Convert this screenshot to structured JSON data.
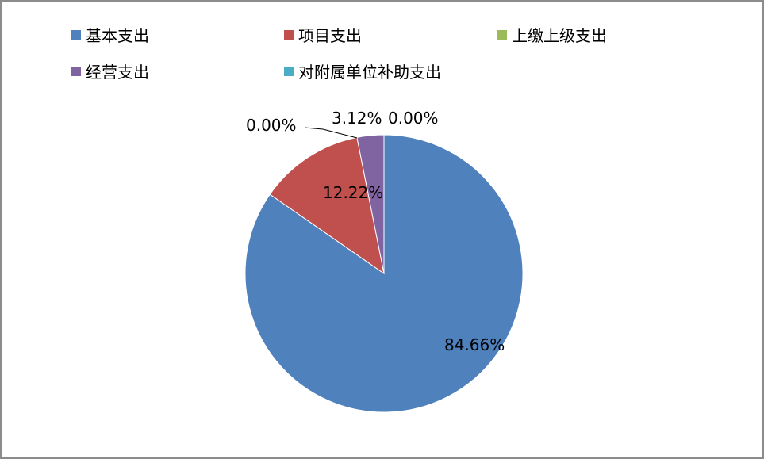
{
  "chart_data": {
    "type": "pie",
    "title": "",
    "legend_position": "top",
    "start_angle_deg": 0,
    "direction": "clockwise",
    "slices": [
      {
        "name": "基本支出",
        "value": 84.66,
        "label": "84.66%",
        "color": "#4F81BD"
      },
      {
        "name": "项目支出",
        "value": 12.22,
        "label": "12.22%",
        "color": "#C0504D"
      },
      {
        "name": "上缴上级支出",
        "value": 0.0,
        "label": "0.00%",
        "color": "#9BBB59"
      },
      {
        "name": "经营支出",
        "value": 3.12,
        "label": "3.12%",
        "color": "#8064A2"
      },
      {
        "name": "对附属单位补助支出",
        "value": 0.0,
        "label": "0.00%",
        "color": "#4BACC6"
      }
    ]
  }
}
